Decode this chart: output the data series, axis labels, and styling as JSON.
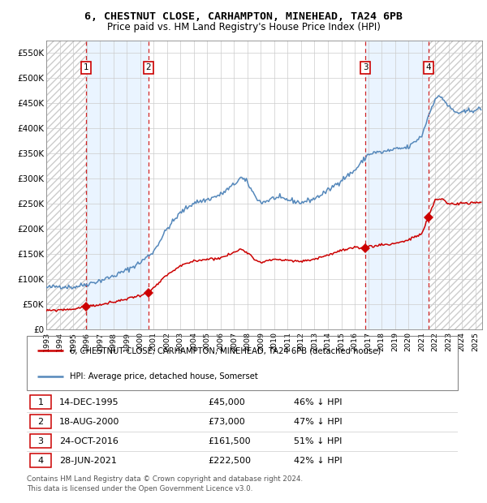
{
  "title1": "6, CHESTNUT CLOSE, CARHAMPTON, MINEHEAD, TA24 6PB",
  "title2": "Price paid vs. HM Land Registry's House Price Index (HPI)",
  "hpi_color": "#5588bb",
  "price_color": "#cc0000",
  "grid_color": "#cccccc",
  "purchases": [
    {
      "date_year": 1995.95,
      "price": 45000,
      "label": "1"
    },
    {
      "date_year": 2000.62,
      "price": 73000,
      "label": "2"
    },
    {
      "date_year": 2016.8,
      "price": 161500,
      "label": "3"
    },
    {
      "date_year": 2021.49,
      "price": 222500,
      "label": "4"
    }
  ],
  "ylim": [
    0,
    575000
  ],
  "xlim_start": 1993.0,
  "xlim_end": 2025.5,
  "yticks": [
    0,
    50000,
    100000,
    150000,
    200000,
    250000,
    300000,
    350000,
    400000,
    450000,
    500000,
    550000
  ],
  "ytick_labels": [
    "£0",
    "£50K",
    "£100K",
    "£150K",
    "£200K",
    "£250K",
    "£300K",
    "£350K",
    "£400K",
    "£450K",
    "£500K",
    "£550K"
  ],
  "xticks": [
    1993,
    1994,
    1995,
    1996,
    1997,
    1998,
    1999,
    2000,
    2001,
    2002,
    2003,
    2004,
    2005,
    2006,
    2007,
    2008,
    2009,
    2010,
    2011,
    2012,
    2013,
    2014,
    2015,
    2016,
    2017,
    2018,
    2019,
    2020,
    2021,
    2022,
    2023,
    2024,
    2025
  ],
  "footnote1": "Contains HM Land Registry data © Crown copyright and database right 2024.",
  "footnote2": "This data is licensed under the Open Government Licence v3.0.",
  "legend1": "6, CHESTNUT CLOSE, CARHAMPTON, MINEHEAD, TA24 6PB (detached house)",
  "legend2": "HPI: Average price, detached house, Somerset",
  "table_rows": [
    [
      "1",
      "14-DEC-1995",
      "£45,000",
      "46% ↓ HPI"
    ],
    [
      "2",
      "18-AUG-2000",
      "£73,000",
      "47% ↓ HPI"
    ],
    [
      "3",
      "24-OCT-2016",
      "£161,500",
      "51% ↓ HPI"
    ],
    [
      "4",
      "28-JUN-2021",
      "£222,500",
      "42% ↓ HPI"
    ]
  ],
  "hpi_keypoints": [
    [
      1993.0,
      83000
    ],
    [
      1994.0,
      86000
    ],
    [
      1995.0,
      84000
    ],
    [
      1996.0,
      90000
    ],
    [
      1997.0,
      97000
    ],
    [
      1998.0,
      106000
    ],
    [
      1999.0,
      118000
    ],
    [
      2000.0,
      133000
    ],
    [
      2001.0,
      155000
    ],
    [
      2002.0,
      200000
    ],
    [
      2003.0,
      232000
    ],
    [
      2004.0,
      252000
    ],
    [
      2005.0,
      258000
    ],
    [
      2006.0,
      268000
    ],
    [
      2007.0,
      288000
    ],
    [
      2007.5,
      302000
    ],
    [
      2008.0,
      292000
    ],
    [
      2008.5,
      268000
    ],
    [
      2009.0,
      252000
    ],
    [
      2009.5,
      256000
    ],
    [
      2010.0,
      262000
    ],
    [
      2011.0,
      258000
    ],
    [
      2012.0,
      252000
    ],
    [
      2013.0,
      260000
    ],
    [
      2014.0,
      276000
    ],
    [
      2015.0,
      297000
    ],
    [
      2016.0,
      316000
    ],
    [
      2017.0,
      348000
    ],
    [
      2017.5,
      352000
    ],
    [
      2018.0,
      352000
    ],
    [
      2019.0,
      358000
    ],
    [
      2020.0,
      362000
    ],
    [
      2021.0,
      385000
    ],
    [
      2021.5,
      425000
    ],
    [
      2022.0,
      460000
    ],
    [
      2022.5,
      462000
    ],
    [
      2023.0,
      443000
    ],
    [
      2023.5,
      432000
    ],
    [
      2024.0,
      430000
    ],
    [
      2024.5,
      435000
    ],
    [
      2025.4,
      438000
    ]
  ],
  "pp_keypoints": [
    [
      1993.0,
      37000
    ],
    [
      1994.0,
      39000
    ],
    [
      1995.0,
      40500
    ],
    [
      1995.95,
      45000
    ],
    [
      1997.0,
      49000
    ],
    [
      1998.0,
      54000
    ],
    [
      1999.0,
      61000
    ],
    [
      2000.0,
      68000
    ],
    [
      2000.62,
      73000
    ],
    [
      2001.0,
      82000
    ],
    [
      2002.0,
      108000
    ],
    [
      2003.0,
      126000
    ],
    [
      2004.0,
      136000
    ],
    [
      2005.0,
      140000
    ],
    [
      2006.0,
      142000
    ],
    [
      2007.0,
      153000
    ],
    [
      2007.5,
      160000
    ],
    [
      2008.0,
      154000
    ],
    [
      2008.5,
      140000
    ],
    [
      2009.0,
      134000
    ],
    [
      2009.5,
      136000
    ],
    [
      2010.0,
      140000
    ],
    [
      2011.0,
      137000
    ],
    [
      2012.0,
      135000
    ],
    [
      2013.0,
      140000
    ],
    [
      2014.0,
      148000
    ],
    [
      2015.0,
      157000
    ],
    [
      2016.0,
      162000
    ],
    [
      2016.8,
      161500
    ],
    [
      2017.0,
      166000
    ],
    [
      2017.5,
      165000
    ],
    [
      2018.0,
      170000
    ],
    [
      2018.5,
      168000
    ],
    [
      2019.0,
      172000
    ],
    [
      2019.5,
      174000
    ],
    [
      2020.0,
      178000
    ],
    [
      2020.5,
      184000
    ],
    [
      2021.0,
      190000
    ],
    [
      2021.49,
      222500
    ],
    [
      2022.0,
      258000
    ],
    [
      2022.5,
      260000
    ],
    [
      2023.0,
      250000
    ],
    [
      2023.5,
      249000
    ],
    [
      2024.0,
      252000
    ],
    [
      2024.5,
      250000
    ],
    [
      2025.0,
      252000
    ],
    [
      2025.4,
      253000
    ]
  ]
}
